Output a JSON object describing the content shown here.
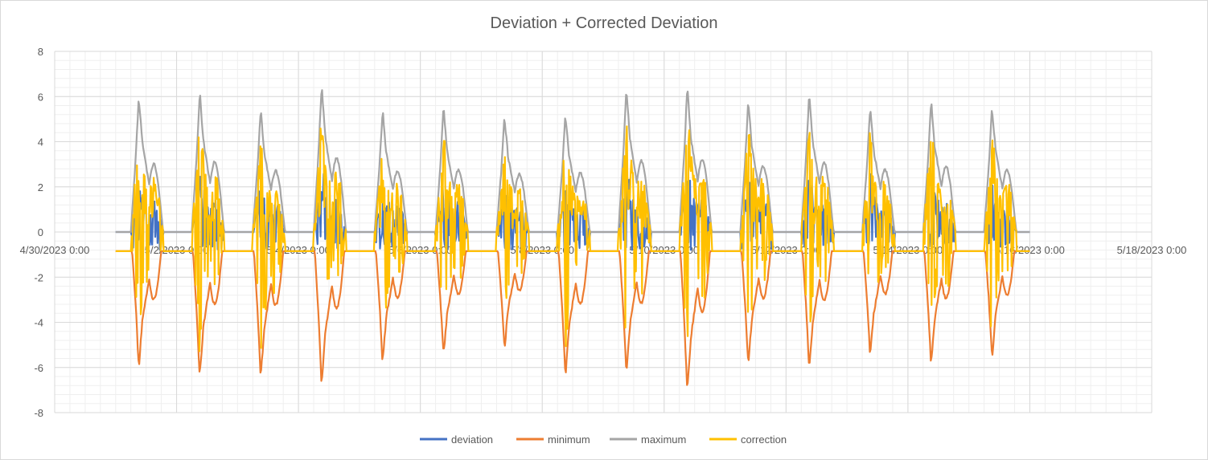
{
  "chart_data": {
    "type": "line",
    "title": "Deviation + Corrected Deviation",
    "xlabel": "",
    "ylabel": "",
    "x_ticks": [
      "4/30/2023 0:00",
      "5/2/2023 0:00",
      "5/4/2023 0:00",
      "5/6/2023 0:00",
      "5/8/2023 0:00",
      "5/10/2023 0:00",
      "5/12/2023 0:00",
      "5/14/2023 0:00",
      "5/16/2023 0:00",
      "5/18/2023 0:00"
    ],
    "xlim": [
      "4/30/2023 0:00",
      "5/18/2023 0:00"
    ],
    "y_ticks": [
      8,
      6,
      4,
      2,
      0,
      -2,
      -4,
      -6,
      -8
    ],
    "ylim": [
      -8,
      8
    ],
    "grid": true,
    "legend_position": "bottom",
    "data_start": "5/1/2023 0:00",
    "data_end": "5/16/2023 0:00",
    "daily_peaks": [
      {
        "day": "5/1",
        "maximum": 6.0,
        "minimum": -6.0,
        "correction": 5.1
      },
      {
        "day": "5/2",
        "maximum": 6.2,
        "minimum": -6.4,
        "correction": 5.3
      },
      {
        "day": "5/3",
        "maximum": 5.4,
        "minimum": -6.5,
        "correction": 4.5
      },
      {
        "day": "5/4",
        "maximum": 6.5,
        "minimum": -6.8,
        "correction": 5.7
      },
      {
        "day": "5/5",
        "maximum": 5.4,
        "minimum": -5.8,
        "correction": 4.6
      },
      {
        "day": "5/6",
        "maximum": 5.5,
        "minimum": -5.5,
        "correction": 4.6
      },
      {
        "day": "5/7",
        "maximum": 5.1,
        "minimum": -5.2,
        "correction": 4.3
      },
      {
        "day": "5/8",
        "maximum": 5.2,
        "minimum": -6.4,
        "correction": 4.4
      },
      {
        "day": "5/9",
        "maximum": 6.3,
        "minimum": -6.3,
        "correction": 5.5
      },
      {
        "day": "5/10",
        "maximum": 6.4,
        "minimum": -7.1,
        "correction": 5.6
      },
      {
        "day": "5/11",
        "maximum": 5.8,
        "minimum": -5.9,
        "correction": 4.9
      },
      {
        "day": "5/12",
        "maximum": 6.1,
        "minimum": -6.1,
        "correction": 5.3
      },
      {
        "day": "5/13",
        "maximum": 5.5,
        "minimum": -5.5,
        "correction": 4.7
      },
      {
        "day": "5/14",
        "maximum": 5.8,
        "minimum": -5.9,
        "correction": 5.0
      },
      {
        "day": "5/15",
        "maximum": 5.5,
        "minimum": -5.6,
        "correction": 4.7
      }
    ],
    "baseline": {
      "maximum": 0,
      "deviation": 0,
      "correction": -0.85
    },
    "series": [
      {
        "name": "deviation",
        "color": "#4472C4"
      },
      {
        "name": "minimum",
        "color": "#ED7D31"
      },
      {
        "name": "maximum",
        "color": "#A5A5A5"
      },
      {
        "name": "correction",
        "color": "#FFC000"
      }
    ]
  }
}
